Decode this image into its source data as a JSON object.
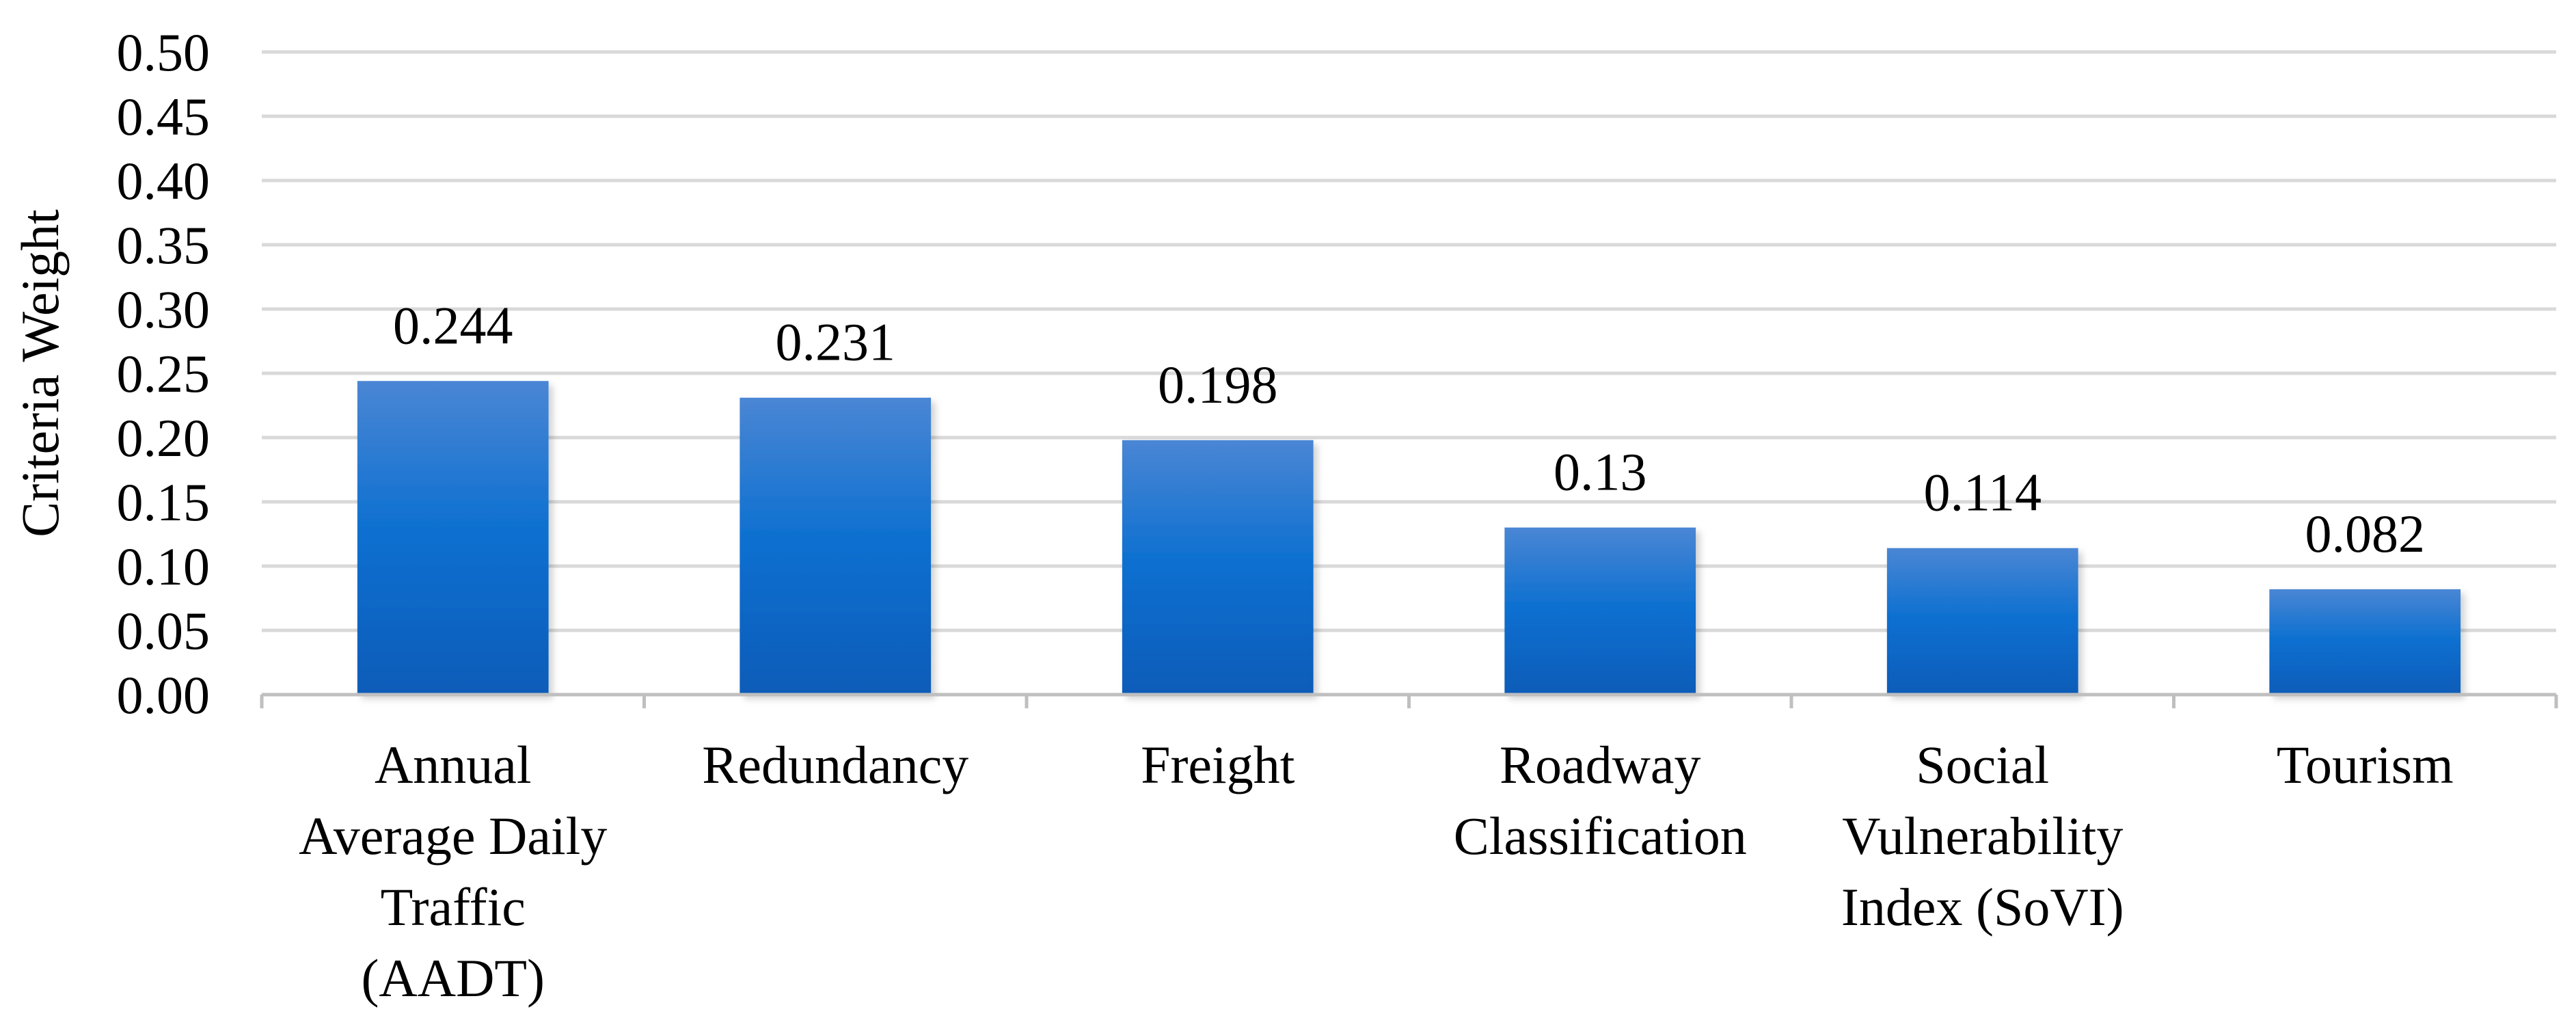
{
  "chart_data": {
    "type": "bar",
    "title": "",
    "xlabel": "",
    "ylabel": "Criteria Weight",
    "categories": [
      [
        "Annual",
        "Average Daily",
        "Traffic",
        "(AADT)"
      ],
      [
        "Redundancy"
      ],
      [
        "Freight"
      ],
      [
        "Roadway",
        "Classification"
      ],
      [
        "Social",
        "Vulnerability",
        "Index (SoVI)"
      ],
      [
        "Tourism"
      ]
    ],
    "values": [
      0.244,
      0.231,
      0.198,
      0.13,
      0.114,
      0.082
    ],
    "data_labels": [
      "0.244",
      "0.231",
      "0.198",
      "0.13",
      "0.114",
      "0.082"
    ],
    "ylim": [
      0,
      0.5
    ],
    "yticks": [
      "0.00",
      "0.05",
      "0.10",
      "0.15",
      "0.20",
      "0.25",
      "0.30",
      "0.35",
      "0.40",
      "0.45",
      "0.50"
    ],
    "grid": true,
    "legend": "none",
    "colors": {
      "bar_top": "#4a86d4",
      "bar_mid": "#0a6fd0",
      "bar_bottom": "#0a5cb8",
      "grid": "#d9d9d9",
      "axis": "#bfbfbf"
    }
  }
}
